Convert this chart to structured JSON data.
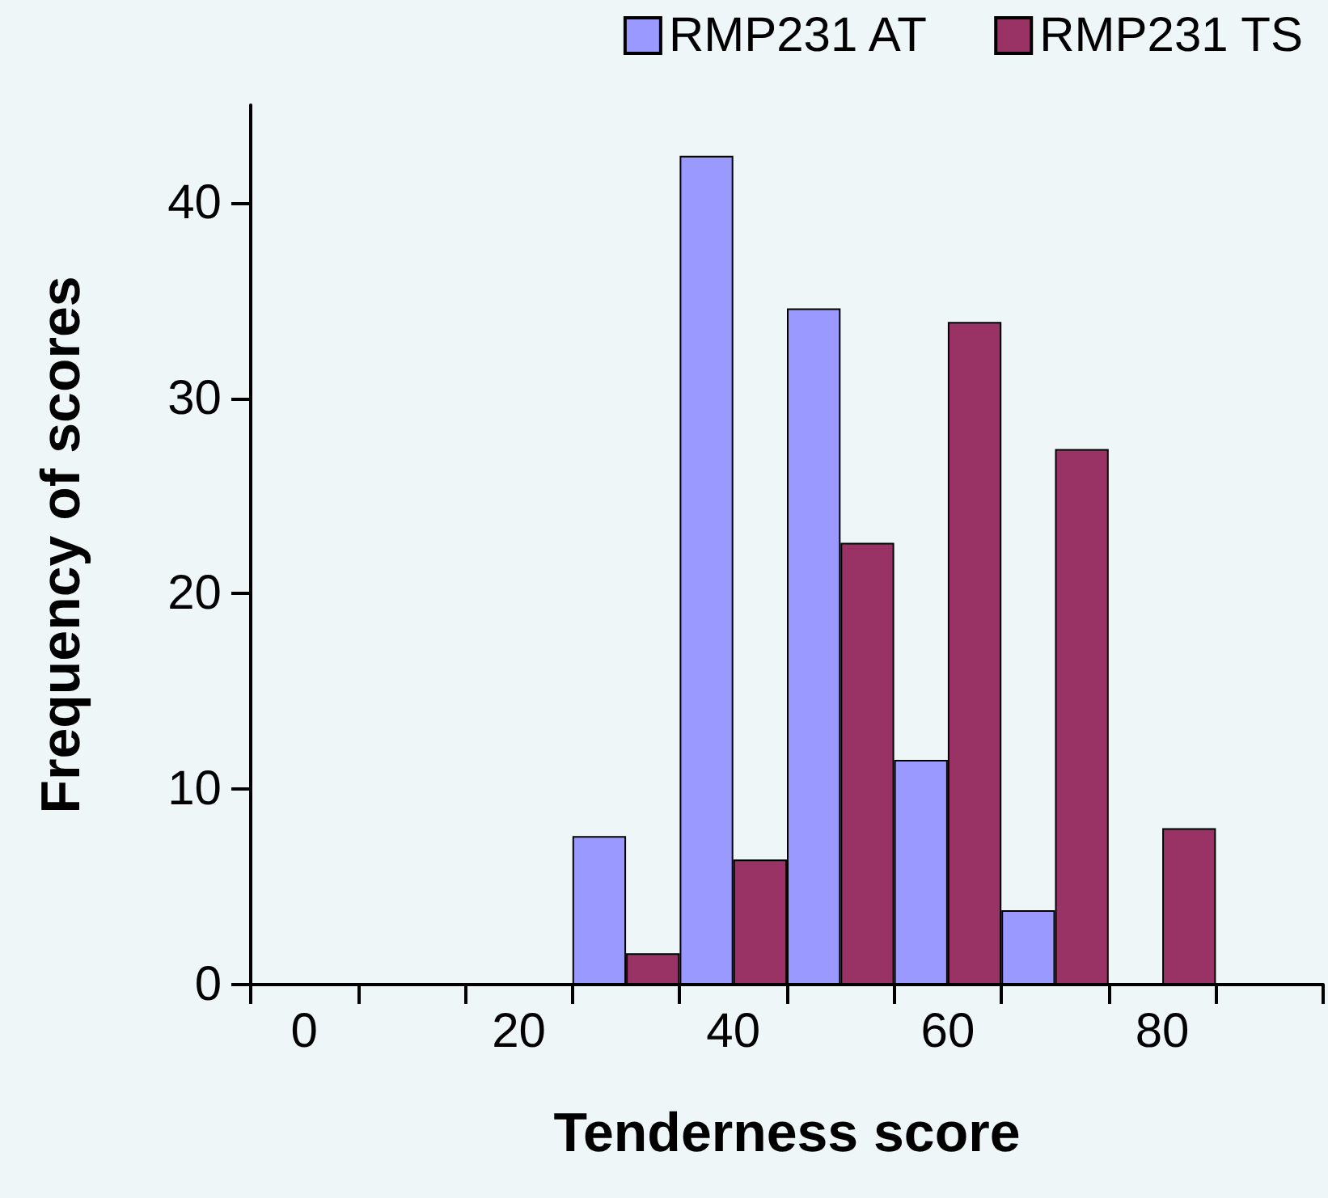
{
  "chart_data": {
    "type": "bar",
    "xlabel": "Tenderness score",
    "ylabel": "Frequency of scores",
    "categories": [
      "0",
      null,
      "20",
      null,
      "40",
      null,
      "60",
      null,
      "80",
      null
    ],
    "series": [
      {
        "name": "RMP231 AT",
        "color": "#9999ff",
        "values": [
          0,
          0,
          0,
          7.6,
          42.4,
          34.6,
          11.5,
          3.8,
          0,
          0
        ]
      },
      {
        "name": "RMP231 TS",
        "color": "#993366",
        "values": [
          0,
          0,
          0,
          1.6,
          6.4,
          22.6,
          33.9,
          27.4,
          8.0,
          0
        ]
      }
    ],
    "ylim": [
      0,
      45
    ],
    "yticks": [
      0,
      10,
      20,
      30,
      40
    ],
    "grid": false,
    "legend": "top right"
  }
}
